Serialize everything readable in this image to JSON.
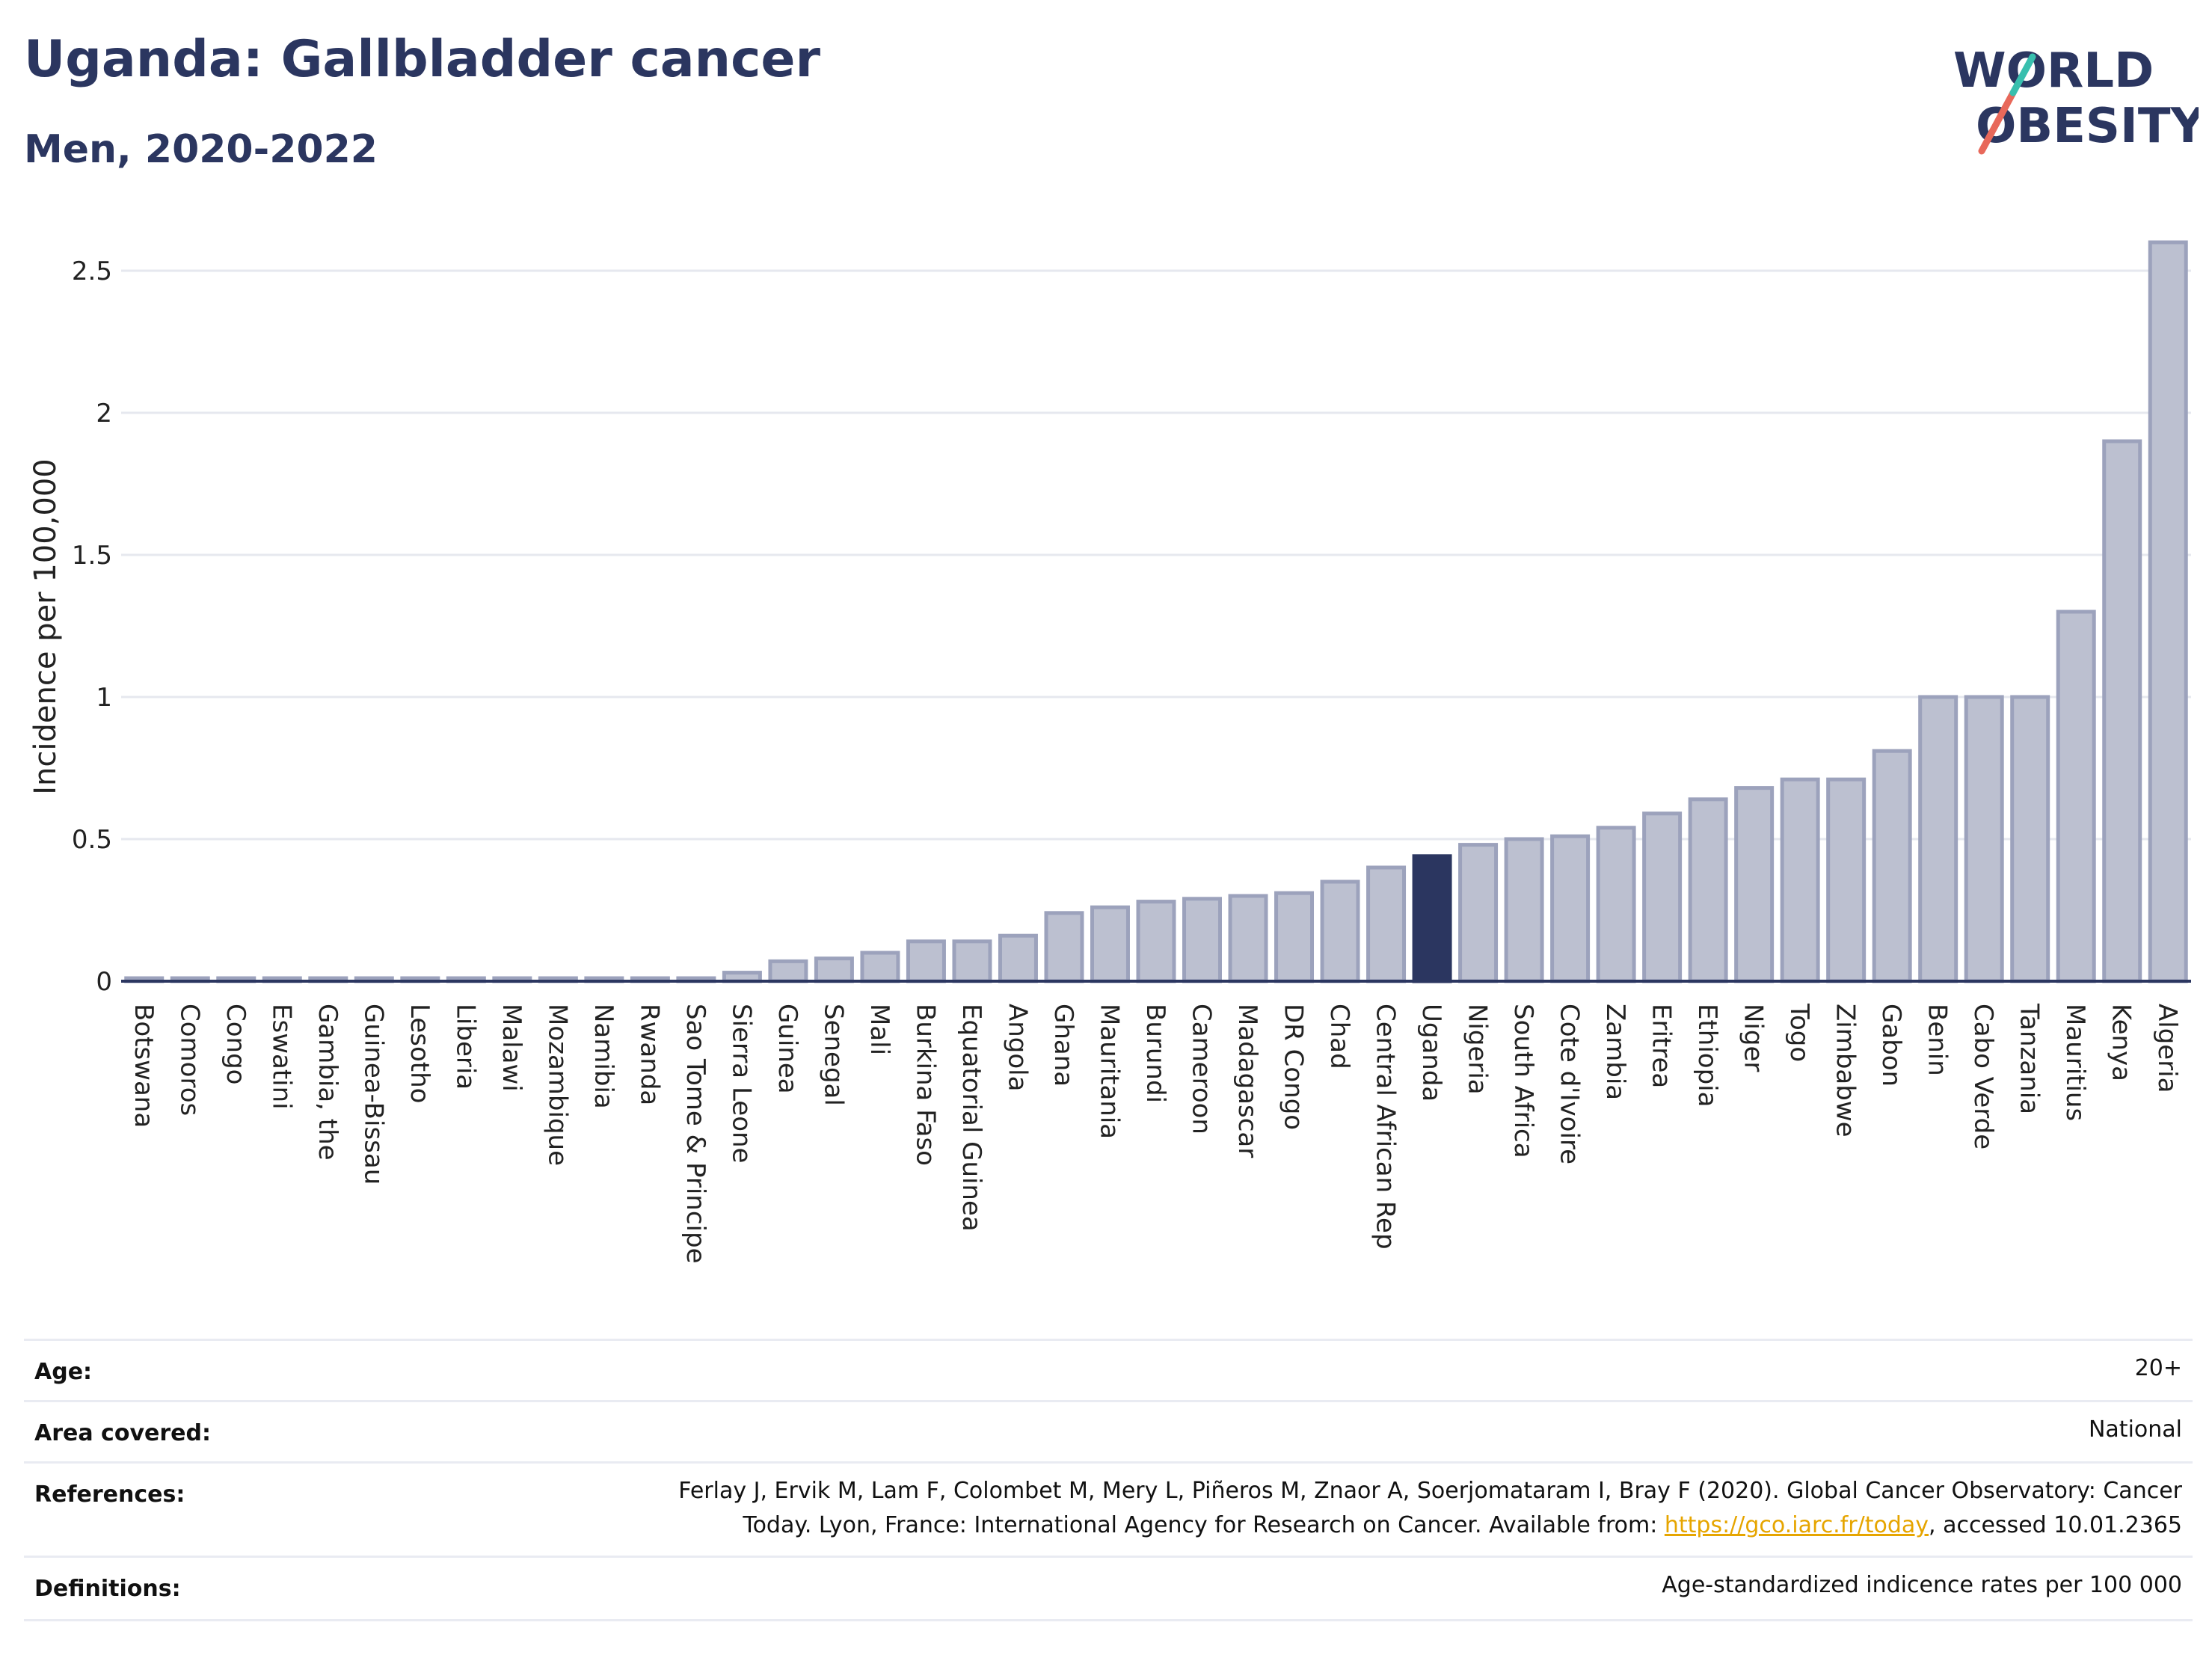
{
  "header": {
    "title": "Uganda: Gallbladder cancer",
    "subtitle": "Men, 2020-2022"
  },
  "logo": {
    "line1": "WORLD",
    "line2": "OBESITY"
  },
  "colors": {
    "bar": "#bcc0d0",
    "bar_border": "#9ca2bc",
    "highlight": "#2b3660",
    "grid": "#e6e8ef"
  },
  "chart_data": {
    "type": "bar",
    "ylabel": "Incidence per 100,000",
    "ylim": [
      0,
      2.6
    ],
    "yticks": [
      "0",
      "0.5",
      "1",
      "1.5",
      "2",
      "2.5"
    ],
    "ytick_values": [
      0,
      0.5,
      1,
      1.5,
      2,
      2.5
    ],
    "highlight": "Uganda",
    "categories": [
      "Botswana",
      "Comoros",
      "Congo",
      "Eswatini",
      "Gambia, the",
      "Guinea-Bissau",
      "Lesotho",
      "Liberia",
      "Malawi",
      "Mozambique",
      "Namibia",
      "Rwanda",
      "Sao Tome & Principe",
      "Sierra Leone",
      "Guinea",
      "Senegal",
      "Mali",
      "Burkina Faso",
      "Equatorial Guinea",
      "Angola",
      "Ghana",
      "Mauritania",
      "Burundi",
      "Cameroon",
      "Madagascar",
      "DR Congo",
      "Chad",
      "Central African Rep",
      "Uganda",
      "Nigeria",
      "South Africa",
      "Cote d'Ivoire",
      "Zambia",
      "Eritrea",
      "Ethiopia",
      "Niger",
      "Togo",
      "Zimbabwe",
      "Gabon",
      "Benin",
      "Cabo Verde",
      "Tanzania",
      "Mauritius",
      "Kenya",
      "Algeria"
    ],
    "values": [
      0.01,
      0.01,
      0.01,
      0.01,
      0.01,
      0.01,
      0.01,
      0.01,
      0.01,
      0.01,
      0.01,
      0.01,
      0.01,
      0.03,
      0.07,
      0.08,
      0.1,
      0.14,
      0.14,
      0.16,
      0.24,
      0.26,
      0.28,
      0.29,
      0.3,
      0.31,
      0.35,
      0.4,
      0.44,
      0.48,
      0.5,
      0.51,
      0.54,
      0.59,
      0.64,
      0.68,
      0.71,
      0.71,
      0.81,
      1.0,
      1.0,
      1.0,
      1.3,
      1.9,
      2.6
    ]
  },
  "meta": {
    "age_label": "Age:",
    "age_value": "20+",
    "area_label": "Area covered:",
    "area_value": "National",
    "references_label": "References:",
    "references_line1": "Ferlay J, Ervik M, Lam F, Colombet M, Mery L, Piñeros M, Znaor A, Soerjomataram I, Bray F (2020). Global Cancer Observatory: Cancer",
    "references_line2_pre": "Today. Lyon, France: International Agency for Research on Cancer. Available from: ",
    "references_link": "https://gco.iarc.fr/today",
    "references_line2_post": ", accessed 10.01.2365",
    "definitions_label": "Definitions:",
    "definitions_value": "Age-standardized indicence rates per 100 000"
  }
}
